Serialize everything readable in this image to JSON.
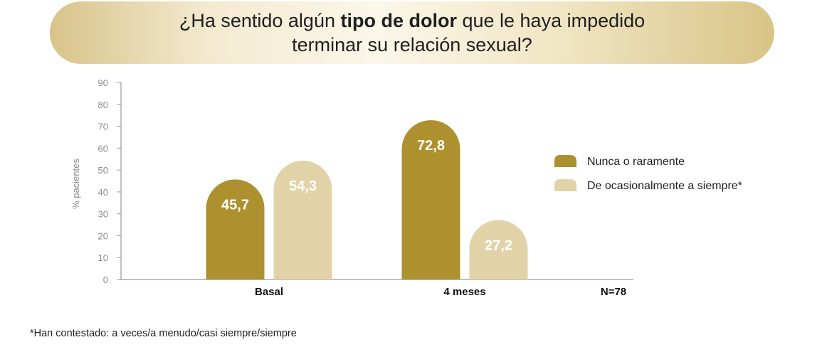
{
  "title": {
    "part1": "¿Ha sentido algún ",
    "bold": "tipo de dolor",
    "part2": " que le haya impedido",
    "line2": "terminar su relación sexual?"
  },
  "footnote": "*Han contestado: a veces/a menudo/casi siempre/siempre",
  "colors": {
    "series1": "#ad912f",
    "series2": "#e1d3a7",
    "banner": "#efe3be"
  },
  "chart_data": {
    "type": "bar",
    "title": "¿Ha sentido algún tipo de dolor que le haya impedido terminar su relación sexual?",
    "ylabel": "% pacientes",
    "xlabel": "",
    "ylim": [
      0,
      90
    ],
    "yticks": [
      0,
      10,
      20,
      30,
      40,
      50,
      60,
      70,
      80,
      90
    ],
    "categories": [
      "Basal",
      "4 meses"
    ],
    "series": [
      {
        "name": "Nunca o raramente",
        "values": [
          45.7,
          72.8
        ],
        "labels": [
          "45,7",
          "72,8"
        ]
      },
      {
        "name": "De ocasionalmente a siempre*",
        "values": [
          54.3,
          27.2
        ],
        "labels": [
          "54,3",
          "27,2"
        ]
      }
    ],
    "annotation": "N=78",
    "legend": "right",
    "grid": false
  }
}
